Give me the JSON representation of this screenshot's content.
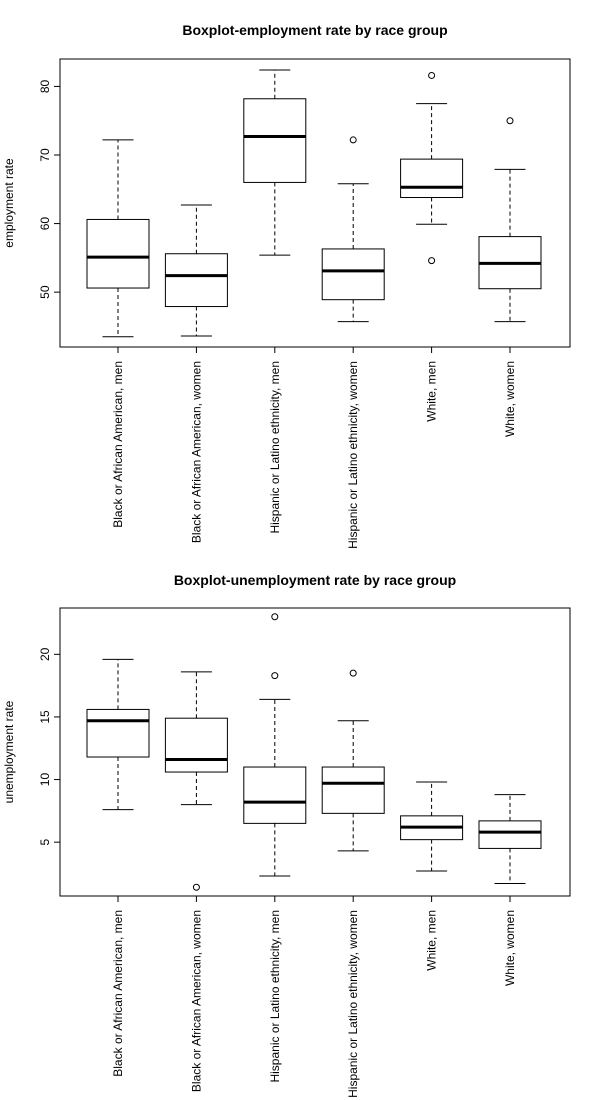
{
  "chart_data": [
    {
      "type": "boxplot",
      "title": "Boxplot-employment rate by race group",
      "xlabel": "",
      "ylabel": "employment rate",
      "ylim": [
        42,
        84
      ],
      "yticks": [
        50,
        60,
        70,
        80
      ],
      "grid": false,
      "categories": [
        "Black or African American, men",
        "Black or African American, women",
        "Hispanic or Latino ethnicity, men",
        "Hispanic or Latino ethnicity, women",
        "White, men",
        "White, women"
      ],
      "boxes": [
        {
          "min": 43.5,
          "q1": 50.6,
          "median": 55.1,
          "q3": 60.6,
          "max": 72.2,
          "outliers": []
        },
        {
          "min": 43.6,
          "q1": 47.9,
          "median": 52.4,
          "q3": 55.6,
          "max": 62.7,
          "outliers": []
        },
        {
          "min": 55.4,
          "q1": 66.0,
          "median": 72.7,
          "q3": 78.2,
          "max": 82.4,
          "outliers": []
        },
        {
          "min": 45.7,
          "q1": 48.9,
          "median": 53.1,
          "q3": 56.3,
          "max": 65.8,
          "outliers": [
            72.2
          ]
        },
        {
          "min": 59.9,
          "q1": 63.8,
          "median": 65.3,
          "q3": 69.4,
          "max": 77.5,
          "outliers": [
            81.6,
            54.6
          ]
        },
        {
          "min": 45.7,
          "q1": 50.5,
          "median": 54.2,
          "q3": 58.1,
          "max": 67.9,
          "outliers": [
            75.0
          ]
        }
      ]
    },
    {
      "type": "boxplot",
      "title": "Boxplot-unemployment rate by race group",
      "xlabel": "",
      "ylabel": "unemployment rate",
      "ylim": [
        0.7,
        23.7
      ],
      "yticks": [
        5,
        10,
        15,
        20
      ],
      "grid": false,
      "categories": [
        "Black or African American, men",
        "Black or African American, women",
        "Hispanic or Latino ethnicity, men",
        "Hispanic or Latino ethnicity, women",
        "White, men",
        "White, women"
      ],
      "boxes": [
        {
          "min": 7.6,
          "q1": 11.8,
          "median": 14.7,
          "q3": 15.6,
          "max": 19.6,
          "outliers": []
        },
        {
          "min": 8.0,
          "q1": 10.6,
          "median": 11.6,
          "q3": 14.9,
          "max": 18.6,
          "outliers": [
            1.4
          ]
        },
        {
          "min": 2.3,
          "q1": 6.5,
          "median": 8.2,
          "q3": 11.0,
          "max": 16.4,
          "outliers": [
            18.3,
            23.0
          ]
        },
        {
          "min": 4.3,
          "q1": 7.3,
          "median": 9.7,
          "q3": 11.0,
          "max": 14.7,
          "outliers": [
            18.5
          ]
        },
        {
          "min": 2.7,
          "q1": 5.2,
          "median": 6.2,
          "q3": 7.1,
          "max": 9.8,
          "outliers": []
        },
        {
          "min": 1.7,
          "q1": 4.5,
          "median": 5.8,
          "q3": 6.7,
          "max": 8.8,
          "outliers": []
        }
      ]
    }
  ]
}
